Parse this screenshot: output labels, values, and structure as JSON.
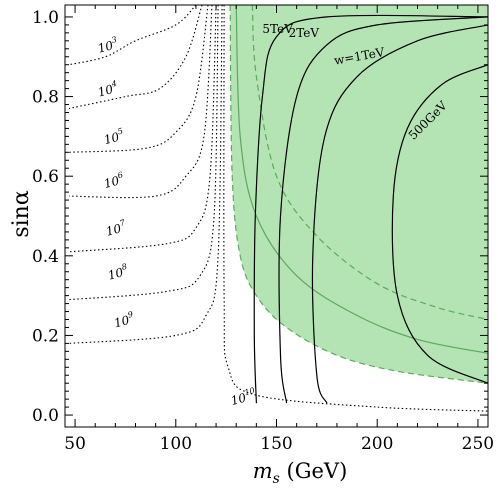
{
  "chart_data": {
    "type": "line",
    "title": "",
    "xlabel": {
      "symbol": "m",
      "sub": "s",
      "unit": "(GeV)"
    },
    "ylabel": "sinα",
    "xlim": [
      45,
      255
    ],
    "ylim": [
      -0.03,
      1.03
    ],
    "x_ticks": [
      50,
      100,
      150,
      200,
      250
    ],
    "y_ticks": [
      0.0,
      0.2,
      0.4,
      0.6,
      0.8,
      1.0
    ],
    "x_tick_labels": [
      "50",
      "100",
      "150",
      "200",
      "250"
    ],
    "y_tick_labels": [
      "0.0",
      "0.2",
      "0.4",
      "0.6",
      "0.8",
      "1.0"
    ],
    "grid": false,
    "colors": {
      "shade_fill": "#b4e3b4",
      "shade_edge": "#5fa85f",
      "curve": "#000000"
    },
    "shaded_region": {
      "description": "allowed region",
      "upper_boundary": [
        [
          127,
          1.03
        ],
        [
          255,
          1.03
        ]
      ],
      "lower_boundary_dashed": [
        [
          127,
          1.03
        ],
        [
          128,
          0.6
        ],
        [
          132,
          0.4
        ],
        [
          140,
          0.3
        ],
        [
          155,
          0.22
        ],
        [
          180,
          0.15
        ],
        [
          210,
          0.11
        ],
        [
          255,
          0.08
        ]
      ],
      "inner_dashed": [
        [
          138,
          1.03
        ],
        [
          140,
          0.85
        ],
        [
          150,
          0.6
        ],
        [
          170,
          0.45
        ],
        [
          200,
          0.33
        ],
        [
          230,
          0.27
        ],
        [
          255,
          0.24
        ]
      ],
      "inner_solid": [
        [
          130,
          1.03
        ],
        [
          132,
          0.7
        ],
        [
          140,
          0.5
        ],
        [
          160,
          0.35
        ],
        [
          190,
          0.25
        ],
        [
          220,
          0.19
        ],
        [
          255,
          0.155
        ]
      ]
    },
    "coupling_curves": [
      {
        "label": "5TeV",
        "points": [
          [
            140,
            0.03
          ],
          [
            139,
            0.2
          ],
          [
            139.5,
            0.5
          ],
          [
            143,
            0.8
          ],
          [
            150,
            0.95
          ],
          [
            175,
            1.0
          ],
          [
            255,
            1.0
          ]
        ]
      },
      {
        "label": "2TeV",
        "points": [
          [
            155,
            0.03
          ],
          [
            152,
            0.15
          ],
          [
            152,
            0.5
          ],
          [
            160,
            0.8
          ],
          [
            175,
            0.93
          ],
          [
            200,
            0.98
          ],
          [
            255,
            1.0
          ]
        ]
      },
      {
        "label": "w=1TeV",
        "points": [
          [
            175,
            0.03
          ],
          [
            170,
            0.1
          ],
          [
            168,
            0.4
          ],
          [
            174,
            0.7
          ],
          [
            190,
            0.85
          ],
          [
            220,
            0.94
          ],
          [
            255,
            0.98
          ]
        ]
      },
      {
        "label": "500GeV",
        "points": [
          [
            255,
            0.08
          ],
          [
            225,
            0.15
          ],
          [
            210,
            0.3
          ],
          [
            208,
            0.55
          ],
          [
            215,
            0.72
          ],
          [
            232,
            0.83
          ],
          [
            255,
            0.88
          ]
        ]
      }
    ],
    "contours": [
      {
        "label": "10",
        "exp": "3",
        "points": [
          [
            110,
            1.03
          ],
          [
            100,
            0.98
          ],
          [
            80,
            0.94
          ],
          [
            65,
            0.9
          ],
          [
            47,
            0.88
          ]
        ]
      },
      {
        "label": "10",
        "exp": "4",
        "points": [
          [
            113,
            1.03
          ],
          [
            105,
            0.9
          ],
          [
            92,
            0.82
          ],
          [
            75,
            0.8
          ],
          [
            47,
            0.77
          ]
        ]
      },
      {
        "label": "10",
        "exp": "5",
        "points": [
          [
            116,
            1.03
          ],
          [
            110,
            0.8
          ],
          [
            100,
            0.71
          ],
          [
            85,
            0.67
          ],
          [
            47,
            0.66
          ]
        ]
      },
      {
        "label": "10",
        "exp": "6",
        "points": [
          [
            118,
            1.03
          ],
          [
            114,
            0.7
          ],
          [
            105,
            0.6
          ],
          [
            90,
            0.55
          ],
          [
            47,
            0.55
          ]
        ]
      },
      {
        "label": "10",
        "exp": "7",
        "points": [
          [
            120,
            1.03
          ],
          [
            117,
            0.6
          ],
          [
            110,
            0.47
          ],
          [
            95,
            0.43
          ],
          [
            47,
            0.41
          ]
        ]
      },
      {
        "label": "10",
        "exp": "8",
        "points": [
          [
            121,
            1.03
          ],
          [
            119,
            0.5
          ],
          [
            112,
            0.35
          ],
          [
            95,
            0.31
          ],
          [
            47,
            0.29
          ]
        ]
      },
      {
        "label": "10",
        "exp": "9",
        "points": [
          [
            123,
            1.03
          ],
          [
            121,
            0.4
          ],
          [
            115,
            0.25
          ],
          [
            100,
            0.2
          ],
          [
            47,
            0.18
          ]
        ]
      },
      {
        "label": "10",
        "exp": "10",
        "points": [
          [
            124,
            1.03
          ],
          [
            124,
            0.3
          ],
          [
            126,
            0.12
          ],
          [
            140,
            0.05
          ],
          [
            200,
            0.02
          ],
          [
            255,
            0.01
          ]
        ]
      }
    ]
  }
}
